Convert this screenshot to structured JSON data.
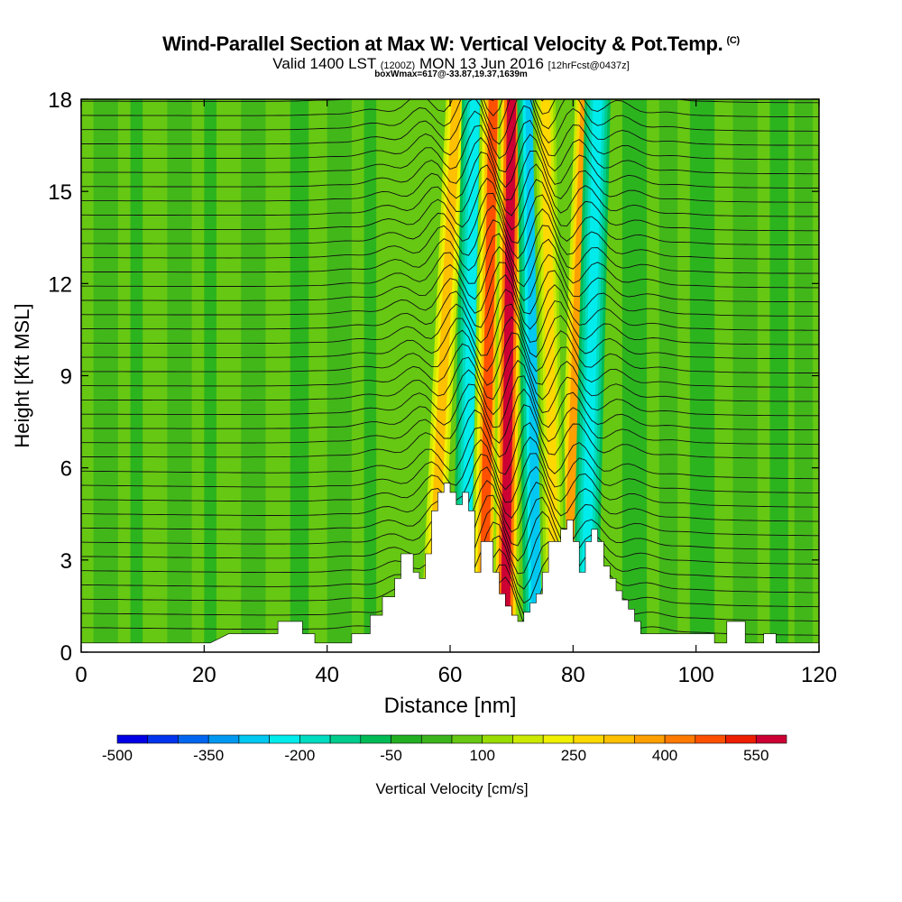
{
  "header": {
    "title": "Wind-Parallel Section at Max W: Vertical Velocity & Pot.Temp.",
    "copyright": "(C)",
    "valid_prefix": "Valid 1400 LST",
    "valid_zulu": "(1200Z)",
    "valid_date": "MON 13 Jun 2016",
    "forecast": "[12hrFcst@0437z]",
    "box_info": "boxWmax=617@-33.87,19.37,1639m"
  },
  "chart_data": {
    "type": "heatmap",
    "xlabel": "Distance [nm]",
    "ylabel": "Height [Kft MSL]",
    "xlim": [
      0,
      120
    ],
    "ylim": [
      0,
      18
    ],
    "xticks": [
      0,
      20,
      40,
      60,
      80,
      100,
      120
    ],
    "yticks": [
      0,
      3,
      6,
      9,
      12,
      15,
      18
    ],
    "colorbar": {
      "label": "Vertical Velocity [cm/s]",
      "tick_labels": [
        "-500",
        "-350",
        "-200",
        "-50",
        "100",
        "250",
        "400",
        "550"
      ],
      "levels": [
        -500,
        -450,
        -400,
        -350,
        -300,
        -250,
        -200,
        -150,
        -100,
        -50,
        0,
        50,
        100,
        150,
        200,
        250,
        300,
        350,
        400,
        450,
        500,
        550,
        600
      ],
      "colors": [
        "#0000e6",
        "#0033ee",
        "#0066f0",
        "#0099f2",
        "#00c8f0",
        "#00ecec",
        "#00dcc0",
        "#00cc8c",
        "#00bb55",
        "#22b022",
        "#3cb41c",
        "#66c812",
        "#99dd00",
        "#ccea00",
        "#f0f000",
        "#ffd800",
        "#ffc000",
        "#ffa000",
        "#ff7a00",
        "#ff5000",
        "#ee1e00",
        "#cc0033"
      ]
    },
    "terrain_profile": [
      [
        0,
        0.3
      ],
      [
        14,
        0.3
      ],
      [
        14,
        0.3
      ],
      [
        18,
        0.3
      ],
      [
        18,
        0.3
      ],
      [
        21,
        0.3
      ],
      [
        21,
        0.3
      ],
      [
        24,
        0.6
      ],
      [
        32,
        0.6
      ],
      [
        32,
        1.0
      ],
      [
        36,
        1.0
      ],
      [
        36,
        0.6
      ],
      [
        38,
        0.6
      ],
      [
        38,
        0.3
      ],
      [
        44,
        0.3
      ],
      [
        44,
        0.6
      ],
      [
        47,
        0.6
      ],
      [
        47,
        1.2
      ],
      [
        49,
        1.2
      ],
      [
        49,
        1.8
      ],
      [
        51,
        1.8
      ],
      [
        51,
        2.4
      ],
      [
        52,
        2.4
      ],
      [
        52,
        3.2
      ],
      [
        54,
        3.2
      ],
      [
        54,
        2.6
      ],
      [
        55,
        2.6
      ],
      [
        55,
        2.4
      ],
      [
        56,
        2.4
      ],
      [
        56,
        3.2
      ],
      [
        57,
        3.2
      ],
      [
        57,
        4.6
      ],
      [
        58,
        4.6
      ],
      [
        58,
        5.2
      ],
      [
        59,
        5.2
      ],
      [
        59,
        5.5
      ],
      [
        60,
        5.5
      ],
      [
        60,
        5.2
      ],
      [
        61,
        5.2
      ],
      [
        61,
        4.8
      ],
      [
        62,
        4.8
      ],
      [
        62,
        5.2
      ],
      [
        63,
        5.2
      ],
      [
        63,
        4.6
      ],
      [
        64,
        4.6
      ],
      [
        64,
        2.6
      ],
      [
        65,
        2.6
      ],
      [
        65,
        3.6
      ],
      [
        67,
        3.6
      ],
      [
        67,
        2.6
      ],
      [
        68,
        2.6
      ],
      [
        68,
        1.9
      ],
      [
        69,
        1.9
      ],
      [
        69,
        1.5
      ],
      [
        70,
        1.5
      ],
      [
        70,
        1.2
      ],
      [
        71,
        1.2
      ],
      [
        71,
        1.0
      ],
      [
        72,
        1.0
      ],
      [
        72,
        1.3
      ],
      [
        73,
        1.3
      ],
      [
        73,
        1.6
      ],
      [
        74,
        1.6
      ],
      [
        74,
        1.9
      ],
      [
        75,
        1.9
      ],
      [
        75,
        2.6
      ],
      [
        76,
        2.6
      ],
      [
        76,
        3.6
      ],
      [
        78,
        3.6
      ],
      [
        78,
        4.0
      ],
      [
        79,
        4.0
      ],
      [
        79,
        4.3
      ],
      [
        80,
        4.3
      ],
      [
        80,
        3.6
      ],
      [
        81,
        3.6
      ],
      [
        81,
        2.6
      ],
      [
        82,
        2.6
      ],
      [
        82,
        3.6
      ],
      [
        83,
        3.6
      ],
      [
        83,
        4.0
      ],
      [
        84,
        4.0
      ],
      [
        84,
        3.6
      ],
      [
        85,
        3.6
      ],
      [
        85,
        2.8
      ],
      [
        86,
        2.8
      ],
      [
        86,
        2.4
      ],
      [
        87,
        2.4
      ],
      [
        87,
        2.0
      ],
      [
        88,
        2.0
      ],
      [
        88,
        1.7
      ],
      [
        89,
        1.7
      ],
      [
        89,
        1.4
      ],
      [
        90,
        1.4
      ],
      [
        90,
        1.0
      ],
      [
        91,
        1.0
      ],
      [
        91,
        0.6
      ],
      [
        103,
        0.6
      ],
      [
        103,
        0.3
      ],
      [
        105,
        0.3
      ],
      [
        105,
        1.0
      ],
      [
        108,
        1.0
      ],
      [
        108,
        0.3
      ],
      [
        111,
        0.3
      ],
      [
        111,
        0.6
      ],
      [
        113,
        0.6
      ],
      [
        113,
        0.3
      ],
      [
        120,
        0.3
      ]
    ],
    "updraft_bands": [
      {
        "name": "band-a",
        "x_top": 61,
        "x_bottom": 57,
        "peak_w": 300
      },
      {
        "name": "band-b",
        "x_top": 64,
        "x_bottom": 62.5,
        "peak_w": -250
      },
      {
        "name": "band-c",
        "x_top": 67,
        "x_bottom": 65.5,
        "peak_w": 450
      },
      {
        "name": "band-d",
        "x_top": 70,
        "x_bottom": 69,
        "peak_w": 550
      },
      {
        "name": "band-e",
        "x_top": 73,
        "x_bottom": 74,
        "peak_w": -300
      },
      {
        "name": "band-f",
        "x_top": 82,
        "x_bottom": 79,
        "peak_w": 350
      },
      {
        "name": "band-g",
        "x_top": 84,
        "x_bottom": 82,
        "peak_w": -250
      },
      {
        "name": "band-h",
        "x_top": 75.5,
        "x_bottom": 77,
        "peak_w": 250
      }
    ],
    "theta_contour_count": 38
  }
}
